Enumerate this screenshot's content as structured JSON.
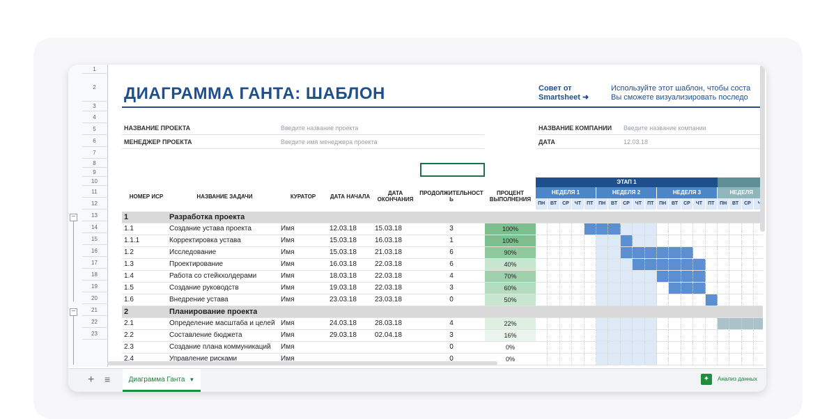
{
  "title": "ДИАГРАММА ГАНТА: ШАБЛОН",
  "tip": {
    "label_line1": "Совет от",
    "label_line2": "Smartsheet ➜",
    "text_line1": "Используйте этот шаблон, чтобы соста",
    "text_line2": "Вы сможете визуализировать последо"
  },
  "project": {
    "name_label": "НАЗВАНИЕ ПРОЕКТА",
    "name_placeholder": "Введите название проекта",
    "manager_label": "МЕНЕДЖЕР ПРОЕКТА",
    "manager_placeholder": "Введите имя менеджера проекта",
    "company_label": "НАЗВАНИЕ КОМПАНИИ",
    "company_placeholder": "Введите название компании",
    "date_label": "ДАТА",
    "date_value": "12.03.18"
  },
  "row_numbers": [
    "1",
    "2",
    "3",
    "4",
    "5",
    "6",
    "7",
    "8",
    "9",
    "10",
    "11",
    "12",
    "13",
    "14",
    "15",
    "16",
    "17",
    "18",
    "19",
    "20",
    "21",
    "22",
    "23"
  ],
  "columns": {
    "wbs": "НОМЕР ИСР",
    "task": "НАЗВАНИЕ ЗАДАЧИ",
    "owner": "КУРАТОР",
    "start": "ДАТА НАЧАЛА",
    "end_line1": "ДАТА",
    "end_line2": "ОКОНЧАНИЯ",
    "duration_line1": "ПРОДОЛЖИТЕЛЬНОСТ",
    "duration_line2": "Ь",
    "pct_line1": "ПРОЦЕНТ",
    "pct_line2": "ВЫПОЛНЕНИЯ"
  },
  "gantt": {
    "phase1": "ЭТАП 1",
    "weeks": [
      "НЕДЕЛЯ 1",
      "НЕДЕЛЯ 2",
      "НЕДЕЛЯ 3",
      "НЕДЕЛЯ"
    ],
    "days": [
      "ПН",
      "ВТ",
      "СР",
      "ЧТ",
      "ПТ",
      "ПН",
      "ВТ",
      "СР",
      "ЧТ",
      "ПТ",
      "ПН",
      "ВТ",
      "СР",
      "ЧТ",
      "ПТ",
      "ПН",
      "ВТ",
      "СР",
      "Ч"
    ]
  },
  "rows": [
    {
      "type": "phase",
      "wbs": "1",
      "task": "Разработка проекта"
    },
    {
      "type": "task",
      "wbs": "1.1",
      "task": "Создание устава проекта",
      "owner": "Имя",
      "start": "12.03.18",
      "end": "15.03.18",
      "duration": "3",
      "pct": "100%",
      "pct_value": 100,
      "bar_start": 4,
      "bar_len": 3
    },
    {
      "type": "task",
      "wbs": "1.1.1",
      "task": "Корректировка устава",
      "owner": "Имя",
      "start": "15.03.18",
      "end": "16.03.18",
      "duration": "1",
      "pct": "100%",
      "pct_value": 100,
      "bar_start": 7,
      "bar_len": 1
    },
    {
      "type": "task",
      "wbs": "1.2",
      "task": "Исследование",
      "owner": "Имя",
      "start": "15.03.18",
      "end": "21.03.18",
      "duration": "6",
      "pct": "90%",
      "pct_value": 90,
      "bar_start": 7,
      "bar_len": 6
    },
    {
      "type": "task",
      "wbs": "1.3",
      "task": "Проектирование",
      "owner": "Имя",
      "start": "16.03.18",
      "end": "22.03.18",
      "duration": "6",
      "pct": "40%",
      "pct_value": 40,
      "bar_start": 8,
      "bar_len": 6
    },
    {
      "type": "task",
      "wbs": "1.4",
      "task": "Работа со стейкхолдерами",
      "owner": "Имя",
      "start": "18.03.18",
      "end": "22.03.18",
      "duration": "4",
      "pct": "70%",
      "pct_value": 70,
      "bar_start": 10,
      "bar_len": 4
    },
    {
      "type": "task",
      "wbs": "1.5",
      "task": "Создание руководств",
      "owner": "Имя",
      "start": "19.03.18",
      "end": "22.03.18",
      "duration": "3",
      "pct": "60%",
      "pct_value": 60,
      "bar_start": 11,
      "bar_len": 3
    },
    {
      "type": "task",
      "wbs": "1.6",
      "task": "Внедрение устава",
      "owner": "Имя",
      "start": "23.03.18",
      "end": "23.03.18",
      "duration": "0",
      "pct": "50%",
      "pct_value": 50,
      "bar_start": 14,
      "bar_len": 1
    },
    {
      "type": "phase",
      "wbs": "2",
      "task": "Планирование проекта"
    },
    {
      "type": "task",
      "wbs": "2.1",
      "task": "Определение масштаба и целей",
      "owner": "Имя",
      "start": "24.03.18",
      "end": "28.03.18",
      "duration": "4",
      "pct": "22%",
      "pct_value": 22,
      "bar_start": 15,
      "bar_len": 4,
      "bar_style": "muted"
    },
    {
      "type": "task",
      "wbs": "2.2",
      "task": "Составление бюджета",
      "owner": "Имя",
      "start": "29.03.18",
      "end": "02.04.18",
      "duration": "3",
      "pct": "16%",
      "pct_value": 16,
      "bar_start": -1,
      "bar_len": 0
    },
    {
      "type": "task",
      "wbs": "2.3",
      "task": "Создание плана коммуникаций",
      "owner": "Имя",
      "start": "",
      "end": "",
      "duration": "0",
      "pct": "0%",
      "pct_value": 0,
      "bar_start": -1,
      "bar_len": 0
    },
    {
      "type": "task",
      "wbs": "2.4",
      "task": "Управление рисками",
      "owner": "Имя",
      "start": "",
      "end": "",
      "duration": "0",
      "pct": "0%",
      "pct_value": 0,
      "bar_start": -1,
      "bar_len": 0
    }
  ],
  "sheet_tab": "Диаграмма Ганта",
  "explore_label": "Анализ данных",
  "colors": {
    "brand": "#1f4e8c",
    "bar": "#5b8fd1",
    "bar_muted": "#a9c3c8",
    "week_highlight": "#dde9f7",
    "phase_header": "#1f4e8c",
    "week_header": "#4d86c7"
  }
}
